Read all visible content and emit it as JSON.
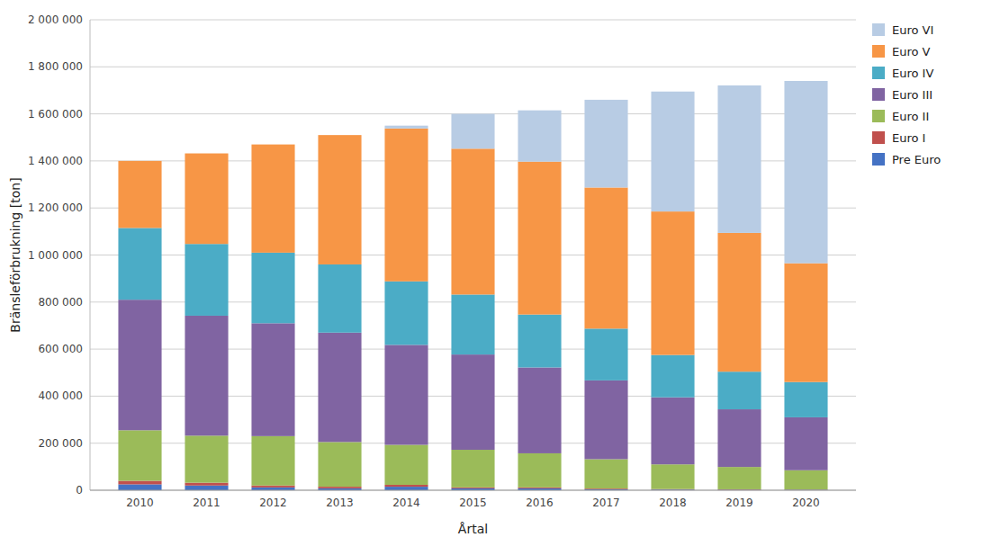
{
  "chart_data": {
    "type": "bar",
    "stacked": true,
    "xlabel": "Årtal",
    "ylabel": "Bränsleförbrukning [ton]",
    "categories": [
      "2010",
      "2011",
      "2012",
      "2013",
      "2014",
      "2015",
      "2016",
      "2017",
      "2018",
      "2019",
      "2020"
    ],
    "series": [
      {
        "name": "Pre Euro",
        "color": "#4472C4",
        "values": [
          25000,
          20000,
          12000,
          8000,
          15000,
          8000,
          8000,
          4000,
          3000,
          2000,
          2000
        ]
      },
      {
        "name": "Euro I",
        "color": "#C0504D",
        "values": [
          15000,
          12000,
          8000,
          7000,
          8000,
          4000,
          4000,
          3000,
          2000,
          2000,
          1000
        ]
      },
      {
        "name": "Euro II",
        "color": "#9BBB59",
        "values": [
          215000,
          200000,
          210000,
          190000,
          170000,
          160000,
          145000,
          125000,
          105000,
          95000,
          82000
        ]
      },
      {
        "name": "Euro III",
        "color": "#8064A2",
        "values": [
          555000,
          510000,
          480000,
          465000,
          425000,
          405000,
          365000,
          335000,
          285000,
          245000,
          225000
        ]
      },
      {
        "name": "Euro IV",
        "color": "#4BACC6",
        "values": [
          305000,
          305000,
          300000,
          290000,
          270000,
          255000,
          225000,
          220000,
          180000,
          160000,
          150000
        ]
      },
      {
        "name": "Euro V",
        "color": "#F79646",
        "values": [
          285000,
          385000,
          460000,
          550000,
          650000,
          620000,
          650000,
          600000,
          610000,
          590000,
          505000
        ]
      },
      {
        "name": "Euro VI",
        "color": "#B8CCE4",
        "values": [
          0,
          0,
          0,
          0,
          12000,
          148000,
          218000,
          373000,
          510000,
          627000,
          775000
        ]
      }
    ],
    "ylim": [
      0,
      2000000
    ],
    "yticks": [
      0,
      {
        "value": 200000,
        "label": "200 000"
      },
      {
        "value": 400000,
        "label": "400 000"
      },
      {
        "value": 600000,
        "label": "600 000"
      },
      {
        "value": 800000,
        "label": "800 000"
      },
      {
        "value": 1000000,
        "label": "1 000 000"
      },
      {
        "value": 1200000,
        "label": "1 200 000"
      },
      {
        "value": 1400000,
        "label": "1 400 000"
      },
      {
        "value": 1600000,
        "label": "1 600 000"
      },
      {
        "value": 1800000,
        "label": "1 800 000"
      },
      {
        "value": 2000000,
        "label": "2 000 000"
      }
    ],
    "grid": true,
    "legend": "right"
  }
}
